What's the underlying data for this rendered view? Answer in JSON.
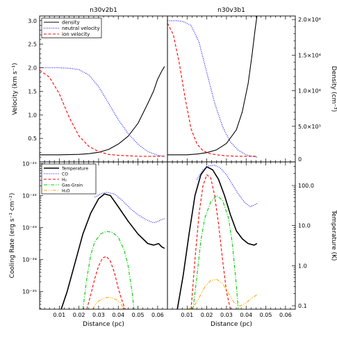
{
  "chart_data": [
    {
      "type": "line",
      "panel": "top-left",
      "title": "n30v2b1",
      "ylabel": "Velocity (km s⁻¹)",
      "xlim": [
        0.0,
        0.065
      ],
      "ylim": [
        0.0,
        3.1
      ],
      "yticks": [
        0.5,
        1.0,
        1.5,
        2.0,
        2.5,
        3.0
      ],
      "ytick_labels": [
        "0.5",
        "1.0",
        "1.5",
        "2.0",
        "2.5",
        "3.0"
      ],
      "legend": [
        "density",
        "neutral velocity",
        "ion velocity"
      ],
      "legend_position": "top-left",
      "series": [
        {
          "name": "density",
          "color": "#000000",
          "style": "solid",
          "axis": "density",
          "x": [
            0.0,
            0.01,
            0.02,
            0.025,
            0.03,
            0.035,
            0.04,
            0.045,
            0.05,
            0.055,
            0.058,
            0.06,
            0.062,
            0.0635
          ],
          "y": [
            1000,
            1000,
            1050,
            1150,
            1350,
            1750,
            2500,
            3600,
            5400,
            8200,
            10000,
            11600,
            12700,
            13400
          ]
        },
        {
          "name": "neutral velocity",
          "color": "#0000ff",
          "style": "dotted",
          "axis": "velocity",
          "x": [
            0.0,
            0.01,
            0.015,
            0.02,
            0.025,
            0.03,
            0.035,
            0.04,
            0.045,
            0.05,
            0.055,
            0.06,
            0.0635
          ],
          "y": [
            2.0,
            2.0,
            1.99,
            1.96,
            1.85,
            1.6,
            1.25,
            0.9,
            0.6,
            0.38,
            0.22,
            0.14,
            0.12
          ]
        },
        {
          "name": "ion velocity",
          "color": "#ff0000",
          "style": "dashed",
          "axis": "velocity",
          "x": [
            0.0,
            0.005,
            0.01,
            0.015,
            0.02,
            0.025,
            0.03,
            0.035,
            0.04,
            0.045,
            0.05,
            0.055,
            0.0635
          ],
          "y": [
            1.95,
            1.8,
            1.45,
            0.95,
            0.55,
            0.33,
            0.22,
            0.16,
            0.14,
            0.13,
            0.12,
            0.12,
            0.12
          ]
        }
      ]
    },
    {
      "type": "line",
      "panel": "top-right",
      "title": "n30v3b1",
      "ylabel": "Density (cm⁻³)",
      "xlim": [
        0.0,
        0.065
      ],
      "y2lim": [
        0,
        20500
      ],
      "y2ticks": [
        5000,
        10000,
        15000,
        20000
      ],
      "y2tick_labels": [
        "5.0×10³",
        "1.0×10⁴",
        "1.5×10⁴",
        "2.0×10⁴"
      ],
      "y2tick_zero": "0",
      "series": [
        {
          "name": "density",
          "color": "#000000",
          "style": "solid",
          "axis": "density",
          "x": [
            0.0,
            0.01,
            0.015,
            0.02,
            0.025,
            0.03,
            0.035,
            0.038,
            0.041,
            0.043,
            0.0445,
            0.0455
          ],
          "y": [
            1000,
            1000,
            1100,
            1300,
            1700,
            2600,
            4500,
            7000,
            11000,
            15000,
            18500,
            20500
          ]
        },
        {
          "name": "neutral velocity",
          "color": "#0000ff",
          "style": "dotted",
          "axis": "velocity",
          "x": [
            0.0,
            0.005,
            0.008,
            0.012,
            0.016,
            0.02,
            0.024,
            0.028,
            0.032,
            0.036,
            0.04,
            0.0455
          ],
          "y": [
            3.0,
            3.0,
            2.98,
            2.9,
            2.55,
            1.9,
            1.25,
            0.75,
            0.42,
            0.25,
            0.15,
            0.1
          ]
        },
        {
          "name": "ion velocity",
          "color": "#ff0000",
          "style": "dashed",
          "axis": "velocity",
          "x": [
            0.0,
            0.003,
            0.006,
            0.009,
            0.012,
            0.015,
            0.018,
            0.021,
            0.025,
            0.03,
            0.035,
            0.0455
          ],
          "y": [
            2.95,
            2.7,
            2.1,
            1.35,
            0.7,
            0.38,
            0.24,
            0.18,
            0.15,
            0.13,
            0.12,
            0.12
          ]
        }
      ]
    },
    {
      "type": "line",
      "panel": "bottom-left",
      "xlabel": "Distance (pc)",
      "ylabel": "Cooling Rate (erg s⁻¹ cm⁻²)",
      "xlim": [
        0.0,
        0.065
      ],
      "yscale": "log",
      "ylim_log10": [
        -25.55,
        -20.95
      ],
      "yticks_log10": [
        -25,
        -24,
        -23,
        -22,
        -21
      ],
      "ytick_labels": [
        "10⁻²⁵",
        "10⁻²⁴",
        "10⁻²³",
        "10⁻²²",
        "10⁻²¹"
      ],
      "xticks": [
        0.01,
        0.02,
        0.03,
        0.04,
        0.05,
        0.06
      ],
      "xtick_labels": [
        "0.01",
        "0.02",
        "0.03",
        "0.04",
        "0.05",
        "0.06"
      ],
      "legend": [
        "Temperature",
        "CO",
        "H₂",
        "Gas-Grain",
        "H₂O"
      ],
      "legend_position": "top-left",
      "series": [
        {
          "name": "Temperature",
          "color": "#000000",
          "style": "solid",
          "width": 1.6,
          "x": [
            0.011,
            0.014,
            0.018,
            0.022,
            0.026,
            0.03,
            0.033,
            0.036,
            0.04,
            0.045,
            0.05,
            0.055,
            0.058,
            0.0605,
            0.062,
            0.0635
          ],
          "y": [
            -25.55,
            -25.0,
            -24.1,
            -23.2,
            -22.55,
            -22.1,
            -21.95,
            -22.0,
            -22.35,
            -22.8,
            -23.2,
            -23.5,
            -23.55,
            -23.5,
            -23.6,
            -23.65
          ]
        },
        {
          "name": "CO",
          "color": "#0000ff",
          "style": "dotted",
          "x": [
            0.028,
            0.031,
            0.034,
            0.038,
            0.042,
            0.046,
            0.05,
            0.054,
            0.058,
            0.0605,
            0.062,
            0.0635
          ],
          "y": [
            -22.05,
            -21.95,
            -21.9,
            -21.95,
            -22.15,
            -22.4,
            -22.6,
            -22.75,
            -22.85,
            -22.8,
            -22.75,
            -22.72
          ]
        },
        {
          "name": "H₂",
          "color": "#ff0000",
          "style": "dashed",
          "x": [
            0.024,
            0.026,
            0.028,
            0.03,
            0.032,
            0.034,
            0.036,
            0.038,
            0.04,
            0.042,
            0.0435
          ],
          "y": [
            -25.55,
            -25.1,
            -24.6,
            -24.2,
            -23.95,
            -23.9,
            -24.05,
            -24.4,
            -24.9,
            -25.3,
            -25.55
          ]
        },
        {
          "name": "Gas-Grain",
          "color": "#00cc00",
          "style": "dashdot",
          "x": [
            0.022,
            0.024,
            0.026,
            0.028,
            0.031,
            0.034,
            0.037,
            0.04,
            0.043,
            0.045,
            0.047,
            0.048
          ],
          "y": [
            -25.55,
            -24.6,
            -23.85,
            -23.45,
            -23.2,
            -23.12,
            -23.15,
            -23.3,
            -23.7,
            -24.2,
            -25.0,
            -25.55
          ]
        },
        {
          "name": "H₂O",
          "color": "#ffaa00",
          "style": "dashdotdotted",
          "x": [
            0.027,
            0.029,
            0.031,
            0.033,
            0.035,
            0.037,
            0.039,
            0.041,
            0.043
          ],
          "y": [
            -25.55,
            -25.35,
            -25.25,
            -25.2,
            -25.18,
            -25.2,
            -25.25,
            -25.35,
            -25.55
          ]
        }
      ]
    },
    {
      "type": "line",
      "panel": "bottom-right",
      "xlabel": "Distance (pc)",
      "ylabel": "Temperature (K)",
      "xlim": [
        0.0,
        0.065
      ],
      "xticks": [
        0.01,
        0.02,
        0.03,
        0.04,
        0.05,
        0.06
      ],
      "xtick_labels": [
        "0.01",
        "0.02",
        "0.03",
        "0.04",
        "0.05",
        "0.06"
      ],
      "y2scale": "log",
      "y2ticks_log10": [
        -1,
        0,
        1,
        2
      ],
      "y2tick_labels": [
        "0.1",
        "1.0",
        "10.0",
        "100.0"
      ],
      "series": [
        {
          "name": "Temperature",
          "color": "#000000",
          "style": "solid",
          "width": 1.6,
          "x": [
            0.005,
            0.008,
            0.011,
            0.014,
            0.017,
            0.02,
            0.023,
            0.026,
            0.029,
            0.032,
            0.035,
            0.038,
            0.041,
            0.044,
            0.0455
          ],
          "y": [
            -25.55,
            -24.5,
            -23.2,
            -22.0,
            -21.35,
            -21.1,
            -21.2,
            -21.5,
            -22.0,
            -22.6,
            -23.1,
            -23.35,
            -23.5,
            -23.55,
            -23.5
          ]
        },
        {
          "name": "CO",
          "color": "#0000ff",
          "style": "dotted",
          "x": [
            0.015,
            0.018,
            0.021,
            0.024,
            0.027,
            0.03,
            0.033,
            0.036,
            0.039,
            0.042,
            0.044,
            0.0455
          ],
          "y": [
            -21.5,
            -21.2,
            -21.08,
            -21.05,
            -21.15,
            -21.35,
            -21.65,
            -21.95,
            -22.2,
            -22.35,
            -22.3,
            -22.25
          ]
        },
        {
          "name": "H₂",
          "color": "#ff0000",
          "style": "dashed",
          "x": [
            0.012,
            0.014,
            0.016,
            0.018,
            0.02,
            0.022,
            0.024,
            0.026,
            0.028,
            0.03,
            0.032
          ],
          "y": [
            -25.55,
            -24.0,
            -22.6,
            -21.7,
            -21.35,
            -21.45,
            -22.0,
            -22.9,
            -24.0,
            -25.0,
            -25.55
          ]
        },
        {
          "name": "Gas-Grain",
          "color": "#00cc00",
          "style": "dashdot",
          "x": [
            0.013,
            0.015,
            0.017,
            0.019,
            0.022,
            0.025,
            0.028,
            0.031,
            0.033,
            0.035,
            0.036
          ],
          "y": [
            -25.55,
            -24.5,
            -23.4,
            -22.7,
            -22.2,
            -22.0,
            -22.15,
            -22.7,
            -23.5,
            -24.8,
            -25.55
          ]
        },
        {
          "name": "H₂O",
          "color": "#ffaa00",
          "style": "dashdotdotted",
          "x": [
            0.01,
            0.013,
            0.016,
            0.019,
            0.022,
            0.025,
            0.028,
            0.031,
            0.034,
            0.037,
            0.04,
            0.043,
            0.0455
          ],
          "y": [
            -25.55,
            -25.5,
            -25.2,
            -24.85,
            -24.65,
            -24.62,
            -24.75,
            -25.05,
            -25.35,
            -25.45,
            -25.35,
            -25.2,
            -25.1
          ]
        }
      ]
    }
  ]
}
